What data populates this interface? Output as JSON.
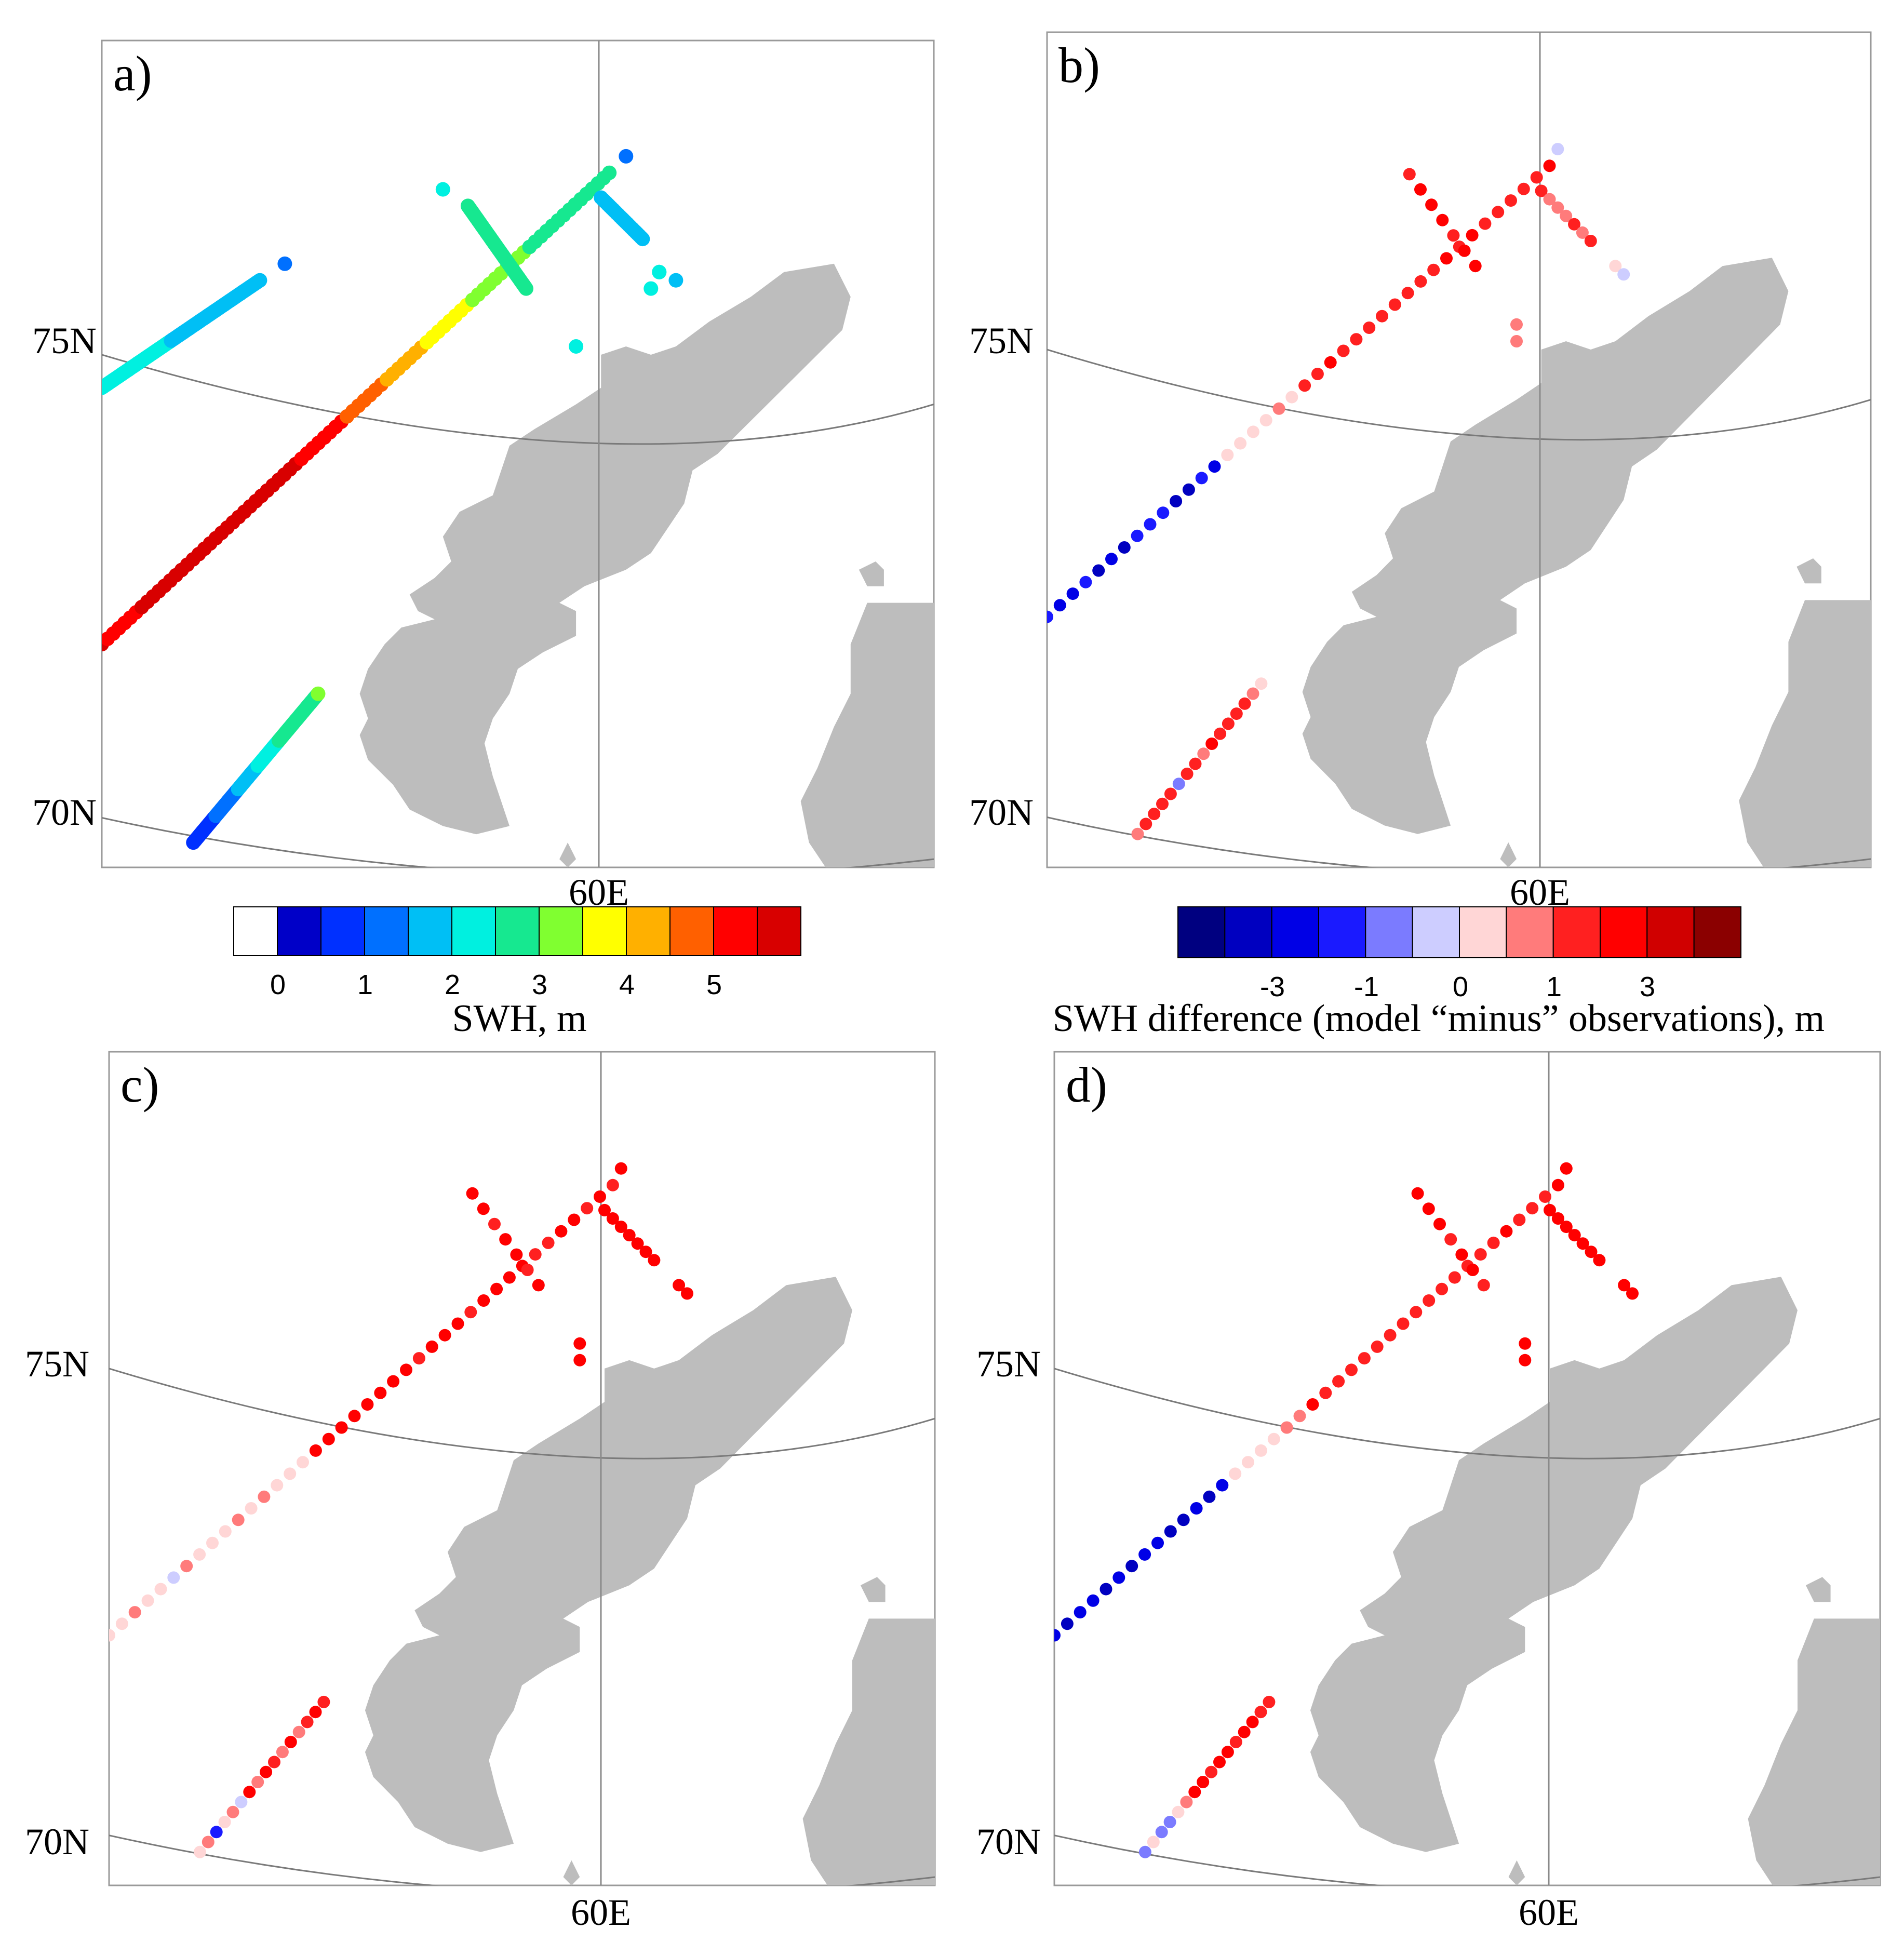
{
  "panels": [
    {
      "id": "a",
      "letter": "a)",
      "lat_labels": [
        "75N",
        "70N"
      ],
      "lon_label": "60E",
      "variable": "swh"
    },
    {
      "id": "b",
      "letter": "b)",
      "lat_labels": [
        "75N",
        "70N"
      ],
      "lon_label": "60E",
      "variable": "diff"
    },
    {
      "id": "c",
      "letter": "c)",
      "lat_labels": [
        "75N",
        "70N"
      ],
      "lon_label": "60E",
      "variable": "diff"
    },
    {
      "id": "d",
      "letter": "d)",
      "lat_labels": [
        "75N",
        "70N"
      ],
      "lon_label": "60E",
      "variable": "diff"
    }
  ],
  "colorbars": {
    "swh": {
      "title": "SWH, m",
      "colors": [
        "#ffffff",
        "#0000c8",
        "#0030ff",
        "#0070ff",
        "#00bff5",
        "#00f0e0",
        "#16e890",
        "#80ff30",
        "#ffff00",
        "#ffb000",
        "#ff6000",
        "#ff0000",
        "#d80000"
      ],
      "tick_labels": [
        "0",
        "1",
        "2",
        "3",
        "4",
        "5"
      ]
    },
    "diff": {
      "title": "SWH difference (model “minus” observations), m",
      "colors": [
        "#000080",
        "#0000c0",
        "#0000e6",
        "#1a1aff",
        "#7b7bff",
        "#cdcdff",
        "#ffd6d6",
        "#ff7b7b",
        "#ff2020",
        "#ff0000",
        "#d00000",
        "#8b0000"
      ],
      "tick_labels": [
        "-3",
        "-1",
        "0",
        "1",
        "3"
      ]
    }
  },
  "chart_data": {
    "type": "scatter",
    "description_axes": {
      "latitude_ticks": [
        "70N",
        "75N"
      ],
      "longitude_ticks": [
        "60E"
      ]
    },
    "panel_a_tracks_swh_m": [
      {
        "track": "western",
        "values": [
          2.0,
          2.0,
          2.1,
          2.0,
          1.9,
          2.0,
          1.9,
          1.8
        ]
      },
      {
        "track": "main",
        "values": [
          5.5,
          5.4,
          5.7,
          5.8,
          6.0,
          5.9,
          5.8,
          5.5,
          5.2,
          4.9,
          4.5,
          4.2,
          3.8,
          3.5,
          3.2,
          3.0,
          2.8,
          2.8,
          2.7
        ]
      },
      {
        "track": "southern",
        "values": [
          0.6,
          0.9,
          1.3,
          1.7,
          2.2,
          2.6,
          2.9,
          3.0
        ]
      },
      {
        "track": "crossing",
        "values": [
          2.5,
          2.6,
          2.8,
          2.8,
          2.9
        ]
      }
    ],
    "panels_bcd_difference_range_m": [
      -2,
      3
    ]
  }
}
